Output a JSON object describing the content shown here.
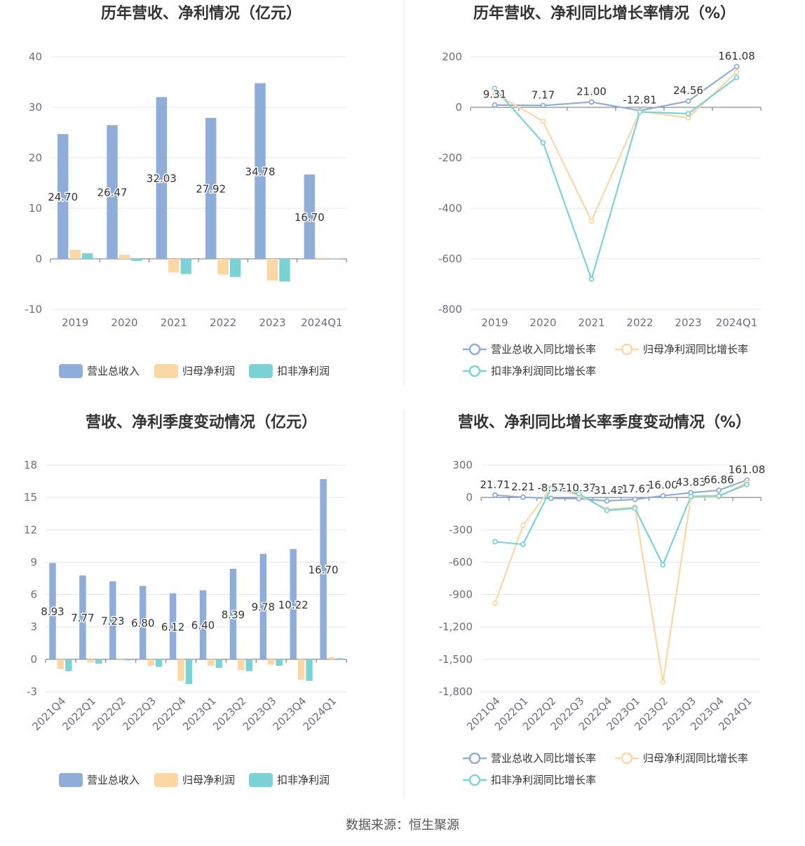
{
  "source": "数据来源：恒生聚源",
  "chart_data": [
    {
      "id": "annual-bar",
      "type": "bar",
      "title": "历年营收、净利情况（亿元）",
      "categories": [
        "2019",
        "2020",
        "2021",
        "2022",
        "2023",
        "2024Q1"
      ],
      "ylim": [
        -10,
        40
      ],
      "yticks": [
        "40",
        "30",
        "20",
        "10",
        "0",
        "-10"
      ],
      "grid": true,
      "legend_position": "bottom",
      "series": [
        {
          "name": "营业总收入",
          "color": "#8eadd9",
          "values": [
            24.7,
            26.47,
            32.03,
            27.92,
            34.78,
            16.7
          ],
          "labels": [
            "24.70",
            "26.47",
            "32.03",
            "27.92",
            "34.78",
            "16.70"
          ]
        },
        {
          "name": "归母净利润",
          "color": "#fbd7a4",
          "values": [
            1.8,
            0.8,
            -2.7,
            -3.1,
            -4.3,
            0.2
          ]
        },
        {
          "name": "扣非净利润",
          "color": "#7bd3d6",
          "values": [
            1.1,
            -0.4,
            -3.0,
            -3.6,
            -4.5,
            0.1
          ]
        }
      ]
    },
    {
      "id": "annual-growth",
      "type": "line",
      "title": "历年营收、净利同比增长率情况（%）",
      "categories": [
        "2019",
        "2020",
        "2021",
        "2022",
        "2023",
        "2024Q1"
      ],
      "ylim": [
        -800,
        200
      ],
      "yticks": [
        "200",
        "0",
        "-200",
        "-400",
        "-600",
        "-800"
      ],
      "grid": true,
      "legend_position": "bottom",
      "series": [
        {
          "name": "营业总收入同比增长率",
          "color": "#8eadd9",
          "values": [
            9.31,
            7.17,
            21.0,
            -12.81,
            24.56,
            161.08
          ],
          "labels": [
            "9.31",
            "7.17",
            "21.00",
            "-12.81",
            "24.56",
            "161.08"
          ]
        },
        {
          "name": "归母净利润同比增长率",
          "color": "#fbd7a4",
          "values": [
            55,
            -55,
            -450,
            -15,
            -42,
            140
          ]
        },
        {
          "name": "扣非净利润同比增长率",
          "color": "#7bd3d6",
          "values": [
            75,
            -140,
            -680,
            -18,
            -25,
            118
          ]
        }
      ]
    },
    {
      "id": "quarter-bar",
      "type": "bar",
      "title": "营收、净利季度变动情况（亿元）",
      "categories": [
        "2021Q4",
        "2022Q1",
        "2022Q2",
        "2022Q3",
        "2022Q4",
        "2023Q1",
        "2023Q2",
        "2023Q3",
        "2023Q4",
        "2024Q1"
      ],
      "ylim": [
        -3,
        18
      ],
      "yticks": [
        "18",
        "15",
        "12",
        "9",
        "6",
        "3",
        "0",
        "-3"
      ],
      "grid": true,
      "legend_position": "bottom",
      "series": [
        {
          "name": "营业总收入",
          "color": "#8eadd9",
          "values": [
            8.93,
            7.77,
            7.23,
            6.8,
            6.12,
            6.4,
            8.39,
            9.78,
            10.22,
            16.7
          ],
          "labels": [
            "8.93",
            "7.77",
            "7.23",
            "6.80",
            "6.12",
            "6.40",
            "8.39",
            "9.78",
            "10.22",
            "16.70"
          ]
        },
        {
          "name": "归母净利润",
          "color": "#fbd7a4",
          "values": [
            -0.9,
            -0.3,
            -0.1,
            -0.6,
            -2.0,
            -0.6,
            -1.0,
            -0.5,
            -1.9,
            0.2
          ]
        },
        {
          "name": "扣非净利润",
          "color": "#7bd3d6",
          "values": [
            -1.1,
            -0.4,
            -0.1,
            -0.7,
            -2.3,
            -0.8,
            -1.1,
            -0.6,
            -2.0,
            0.1
          ]
        }
      ]
    },
    {
      "id": "quarter-growth",
      "type": "line",
      "title": "营收、净利同比增长率季度变动情况（%）",
      "categories": [
        "2021Q4",
        "2022Q1",
        "2022Q2",
        "2022Q3",
        "2022Q4",
        "2023Q1",
        "2023Q2",
        "2023Q3",
        "2023Q4",
        "2024Q1"
      ],
      "ylim": [
        -1800,
        300
      ],
      "yticks": [
        "300",
        "0",
        "-300",
        "-600",
        "-900",
        "-1,200",
        "-1,500",
        "-1,800"
      ],
      "grid": true,
      "legend_position": "bottom",
      "series": [
        {
          "name": "营业总收入同比增长率",
          "color": "#8eadd9",
          "values": [
            21.71,
            2.21,
            -8.57,
            -10.37,
            -31.42,
            -17.67,
            16.0,
            43.83,
            66.86,
            161.08
          ],
          "labels": [
            "21.71",
            "2.21",
            "-8.57",
            "-10.37",
            "-31.42",
            "-17.67",
            "16.00",
            "43.83",
            "66.86",
            "161.08"
          ]
        },
        {
          "name": "归母净利润同比增长率",
          "color": "#fbd7a4",
          "values": [
            -980,
            -260,
            90,
            20,
            -110,
            -90,
            -1710,
            0,
            5,
            140
          ]
        },
        {
          "name": "扣非净利润同比增长率",
          "color": "#7bd3d6",
          "values": [
            -410,
            -435,
            80,
            35,
            -120,
            -100,
            -625,
            10,
            15,
            120
          ]
        }
      ]
    }
  ]
}
